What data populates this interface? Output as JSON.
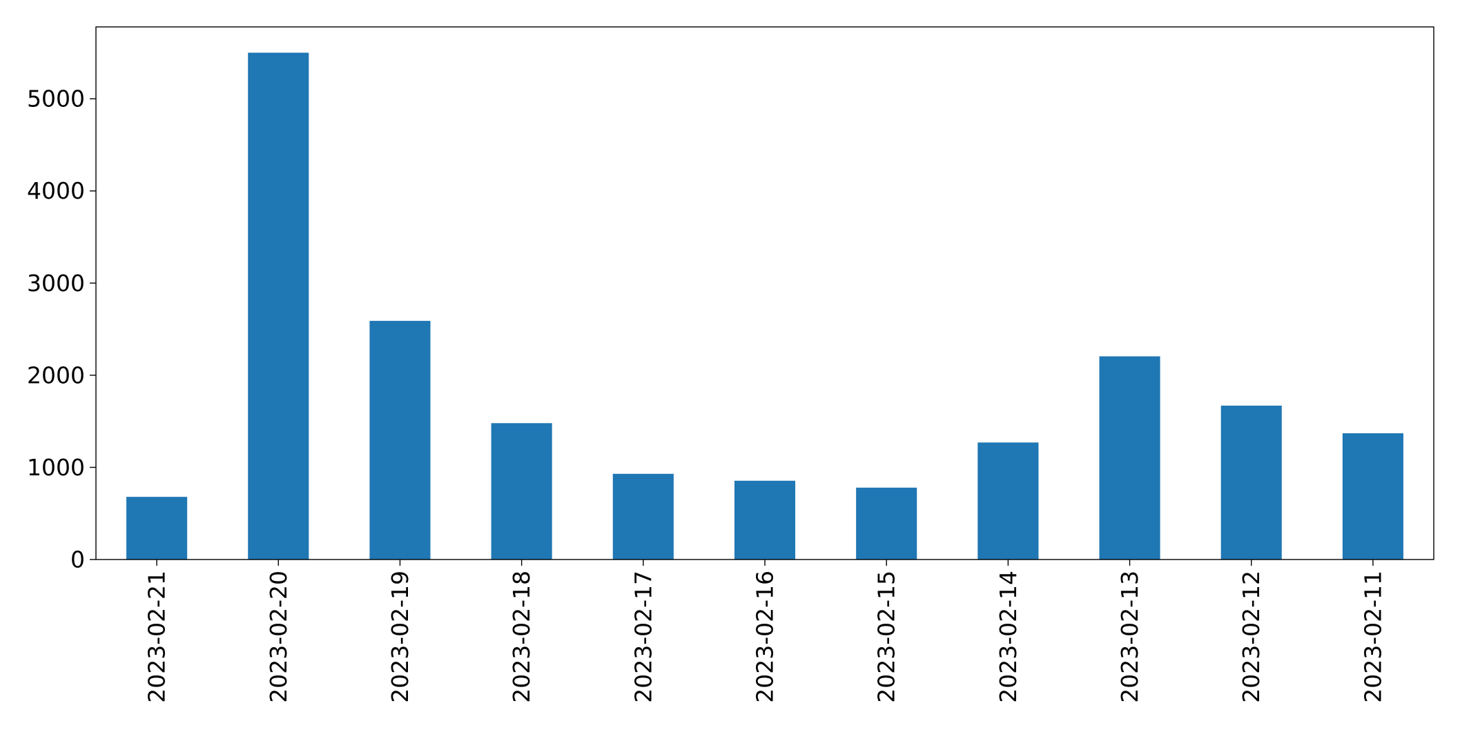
{
  "chart_data": {
    "type": "bar",
    "title": "",
    "xlabel": "",
    "ylabel": "",
    "categories": [
      "2023-02-21",
      "2023-02-20",
      "2023-02-19",
      "2023-02-18",
      "2023-02-17",
      "2023-02-16",
      "2023-02-15",
      "2023-02-14",
      "2023-02-13",
      "2023-02-12",
      "2023-02-11"
    ],
    "values": [
      680,
      5500,
      2590,
      1480,
      930,
      855,
      780,
      1270,
      2205,
      1670,
      1370
    ],
    "yticks": [
      "0",
      "1000",
      "2000",
      "3000",
      "4000",
      "5000"
    ],
    "ylim": [
      0,
      5780
    ],
    "grid": false,
    "legend": "none",
    "bar_color": "#1f77b4"
  }
}
